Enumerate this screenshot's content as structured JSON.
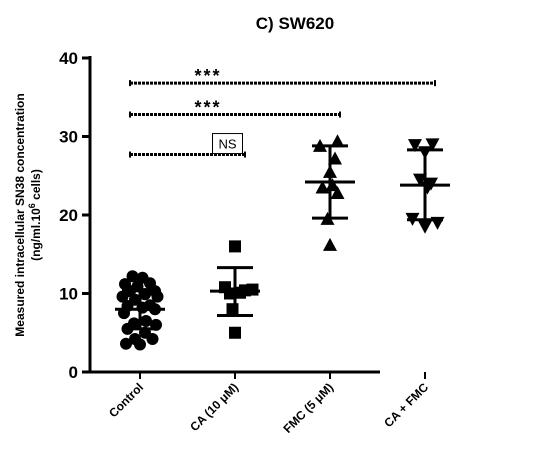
{
  "chart_data": {
    "type": "scatter",
    "title": "C) SW620",
    "ylabel_line1": "Measured intracellular SN38 concentration",
    "ylabel_line2_prefix": "(ng/ml.10",
    "ylabel_line2_sup": "6",
    "ylabel_line2_suffix": " cells)",
    "ylim": [
      0,
      40
    ],
    "yticks": [
      "0",
      "10",
      "20",
      "30",
      "40"
    ],
    "categories": [
      "Control",
      "CA (10 μM)",
      "FMC (5 μM)",
      "CA + FMC"
    ],
    "markers": [
      "circle",
      "square",
      "triangle-up",
      "triangle-down"
    ],
    "series": [
      {
        "category": "Control",
        "points": [
          [
            -0.15,
            12.2
          ],
          [
            0.05,
            12.0
          ],
          [
            -0.3,
            11.2
          ],
          [
            0.2,
            11.3
          ],
          [
            -0.05,
            10.9
          ],
          [
            0.3,
            10.3
          ],
          [
            -0.2,
            10.3
          ],
          [
            0.1,
            9.9
          ],
          [
            -0.35,
            9.6
          ],
          [
            0.35,
            9.6
          ],
          [
            -0.1,
            9.2
          ],
          [
            0.2,
            8.5
          ],
          [
            -0.25,
            8.4
          ],
          [
            0.05,
            8.2
          ],
          [
            0.3,
            8.0
          ],
          [
            -0.32,
            7.5
          ],
          [
            0.12,
            6.5
          ],
          [
            -0.12,
            6.2
          ],
          [
            0.32,
            6.0
          ],
          [
            -0.25,
            5.5
          ],
          [
            0.1,
            5.0
          ],
          [
            -0.1,
            4.2
          ],
          [
            0.25,
            4.2
          ],
          [
            -0.28,
            3.6
          ],
          [
            0.0,
            3.5
          ]
        ],
        "mean": 8.0,
        "sd_low": 5.5,
        "sd_high": 10.5
      },
      {
        "category": "CA (10 μM)",
        "points": [
          [
            0.0,
            16.0
          ],
          [
            -0.2,
            10.8
          ],
          [
            0.2,
            10.4
          ],
          [
            0.35,
            10.5
          ],
          [
            -0.1,
            10.0
          ],
          [
            0.1,
            10.1
          ],
          [
            -0.05,
            8.0
          ],
          [
            0.0,
            5.0
          ]
        ],
        "mean": 10.3,
        "sd_low": 7.2,
        "sd_high": 13.3
      },
      {
        "category": "FMC (5 μM)",
        "points": [
          [
            0.15,
            29.4
          ],
          [
            -0.2,
            28.8
          ],
          [
            0.1,
            27.2
          ],
          [
            0.0,
            25.5
          ],
          [
            -0.15,
            23.5
          ],
          [
            0.05,
            23.8
          ],
          [
            0.15,
            22.8
          ],
          [
            -0.05,
            19.5
          ],
          [
            0.0,
            16.2
          ]
        ],
        "mean": 24.2,
        "sd_low": 19.6,
        "sd_high": 28.8
      },
      {
        "category": "CA + FMC",
        "points": [
          [
            -0.2,
            28.9
          ],
          [
            0.15,
            29.0
          ],
          [
            0.0,
            28.0
          ],
          [
            -0.1,
            24.5
          ],
          [
            0.12,
            24.0
          ],
          [
            0.05,
            23.5
          ],
          [
            -0.25,
            19.5
          ],
          [
            0.25,
            19.0
          ],
          [
            0.0,
            18.5
          ]
        ],
        "mean": 23.8,
        "sd_low": 19.4,
        "sd_high": 28.3
      }
    ],
    "comparisons": [
      {
        "from": "Control",
        "to": "CA + FMC",
        "y": 36.8,
        "label": "***"
      },
      {
        "from": "Control",
        "to": "FMC (5 μM)",
        "y": 32.8,
        "label": "***"
      },
      {
        "from": "Control",
        "to": "CA (10 μM)",
        "y": 27.7,
        "label": "NS"
      }
    ]
  }
}
